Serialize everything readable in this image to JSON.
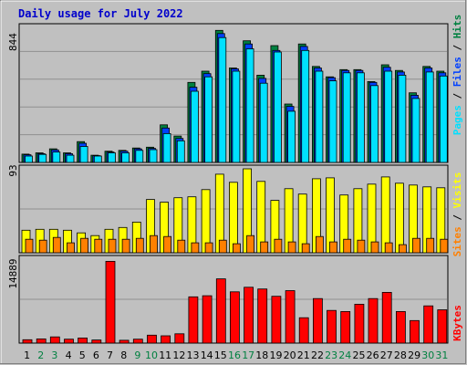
{
  "title": "Daily usage for July 2022",
  "colors": {
    "background": "#c0c0c0",
    "plot_bg": "#c0c0c0",
    "grid": "#909090",
    "title": "#0000cc",
    "hits": "#008040",
    "files": "#0040ff",
    "pages": "#00e0ff",
    "visits": "#ffff00",
    "sites": "#ff8000",
    "kbytes": "#ff0000",
    "weekday": "#000000",
    "weekend": "#008040"
  },
  "panels": {
    "top": {
      "y_max_label": "844",
      "legend": [
        {
          "name": "Pages",
          "color": "#00e0ff"
        },
        {
          "name": "Files",
          "color": "#0040ff"
        },
        {
          "name": "Hits",
          "color": "#008040"
        }
      ],
      "separator": " / "
    },
    "middle": {
      "y_max_label": "93",
      "legend": [
        {
          "name": "Sites",
          "color": "#ff8000"
        },
        {
          "name": "Visits",
          "color": "#ffff00"
        }
      ],
      "separator": " / "
    },
    "bottom": {
      "y_max_label": "14889",
      "legend": [
        {
          "name": "KBytes",
          "color": "#ff0000"
        }
      ],
      "separator": ""
    }
  },
  "chart_data": {
    "type": "bar",
    "title": "Daily usage for July 2022",
    "categories": [
      "1",
      "2",
      "3",
      "4",
      "5",
      "6",
      "7",
      "8",
      "9",
      "10",
      "11",
      "12",
      "13",
      "14",
      "15",
      "16",
      "17",
      "18",
      "19",
      "20",
      "21",
      "22",
      "23",
      "24",
      "25",
      "26",
      "27",
      "28",
      "29",
      "30",
      "31"
    ],
    "weekend_days": [
      "2",
      "3",
      "9",
      "10",
      "16",
      "17",
      "23",
      "24",
      "30",
      "31"
    ],
    "panels": [
      {
        "name": "hits-files-pages",
        "ylim": [
          0,
          844
        ],
        "series": [
          {
            "name": "Hits",
            "values": [
              52,
              60,
              85,
              60,
              130,
              45,
              70,
              75,
              90,
              95,
              235,
              165,
              500,
              570,
              825,
              590,
              760,
              545,
              730,
              365,
              740,
              600,
              535,
              580,
              580,
              505,
              610,
              575,
              435,
              600,
              570
            ]
          },
          {
            "name": "Files",
            "values": [
              48,
              55,
              78,
              55,
              120,
              42,
              65,
              70,
              85,
              88,
              215,
              150,
              470,
              555,
              805,
              585,
              740,
              525,
              700,
              350,
              725,
              590,
              530,
              575,
              575,
              500,
              595,
              565,
              420,
              590,
              560
            ]
          },
          {
            "name": "Pages",
            "values": [
              40,
              50,
              65,
              45,
              100,
              40,
              60,
              60,
              75,
              80,
              180,
              135,
              445,
              535,
              780,
              570,
              710,
              495,
              690,
              320,
              700,
              570,
              510,
              560,
              560,
              480,
              570,
              545,
              400,
              565,
              540
            ]
          }
        ]
      },
      {
        "name": "visits-sites",
        "ylim": [
          0,
          93
        ],
        "series": [
          {
            "name": "Visits",
            "values": [
              25,
              26,
              26,
              25,
              22,
              19,
              26,
              28,
              34,
              59,
              56,
              61,
              62,
              70,
              87,
              78,
              93,
              79,
              58,
              71,
              65,
              82,
              83,
              64,
              71,
              76,
              84,
              77,
              75,
              73,
              72
            ]
          },
          {
            "name": "Sites",
            "values": [
              15,
              14,
              17,
              11,
              16,
              15,
              15,
              15,
              16,
              19,
              18,
              14,
              11,
              11,
              14,
              10,
              19,
              12,
              15,
              12,
              10,
              18,
              12,
              15,
              14,
              12,
              11,
              9,
              16,
              16,
              15
            ]
          }
        ]
      },
      {
        "name": "kbytes",
        "ylim": [
          0,
          14889
        ],
        "series": [
          {
            "name": "KBytes",
            "values": [
              600,
              750,
              1100,
              700,
              900,
              550,
              14500,
              500,
              700,
              1400,
              1300,
              1650,
              8200,
              8400,
              11400,
              9100,
              9900,
              9600,
              8300,
              9300,
              4500,
              7900,
              5800,
              5600,
              6900,
              7900,
              9000,
              5600,
              4000,
              6600,
              5900
            ]
          }
        ]
      }
    ]
  }
}
